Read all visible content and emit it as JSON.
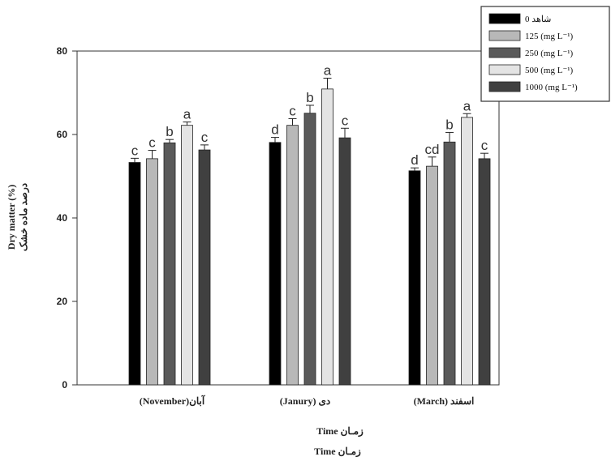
{
  "chart_data": {
    "type": "bar",
    "categories": [
      "(November)آبان",
      "(Janury) دی",
      "(March) اسفند"
    ],
    "series": [
      {
        "name": "0 شاهد",
        "color": "#000000",
        "values": [
          53.3,
          58.1,
          51.3
        ],
        "errors": [
          1.0,
          1.2,
          0.7
        ],
        "letters": [
          "c",
          "d",
          "d"
        ]
      },
      {
        "name": "125 (mg L⁻¹)",
        "color": "#b8b8b8",
        "values": [
          54.2,
          62.2,
          52.4
        ],
        "errors": [
          2.0,
          1.6,
          2.2
        ],
        "letters": [
          "c",
          "c",
          "cd"
        ]
      },
      {
        "name": "250 (mg L⁻¹)",
        "color": "#5a5a5a",
        "values": [
          58.0,
          65.1,
          58.2
        ],
        "errors": [
          0.8,
          1.9,
          2.3
        ],
        "letters": [
          "b",
          "b",
          "b"
        ]
      },
      {
        "name": "500 (mg L⁻¹)",
        "color": "#e4e4e4",
        "values": [
          62.2,
          70.9,
          64.1
        ],
        "errors": [
          0.8,
          2.6,
          0.9
        ],
        "letters": [
          "a",
          "a",
          "a"
        ]
      },
      {
        "name": "1000 (mg L⁻¹)",
        "color": "#404040",
        "values": [
          56.3,
          59.2,
          54.2
        ],
        "errors": [
          1.2,
          2.3,
          1.3
        ],
        "letters": [
          "c",
          "c",
          "c"
        ]
      }
    ],
    "ylim": [
      0,
      80
    ],
    "yticks": [
      0,
      20,
      40,
      60,
      80
    ],
    "ylabel": "Dry matter (%)",
    "ylabel_fa": "درصد ماده خشک",
    "xlabel_lines": [
      "Time   زمـان",
      "Time   زمـان"
    ],
    "legend_position": "top-right",
    "grid": false
  }
}
